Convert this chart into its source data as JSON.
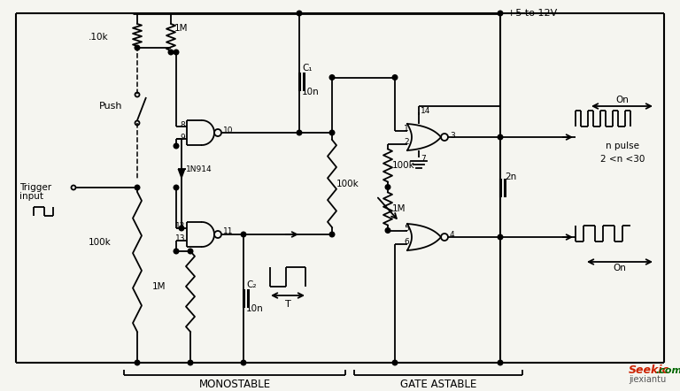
{
  "bg_color": "#f5f5f0",
  "line_color": "#000000",
  "monostable_label": "MONOSTABLE",
  "gate_astable_label": "GATE ASTABLE",
  "vcc_label": "+5 to 12V",
  "border_color": "#888888"
}
